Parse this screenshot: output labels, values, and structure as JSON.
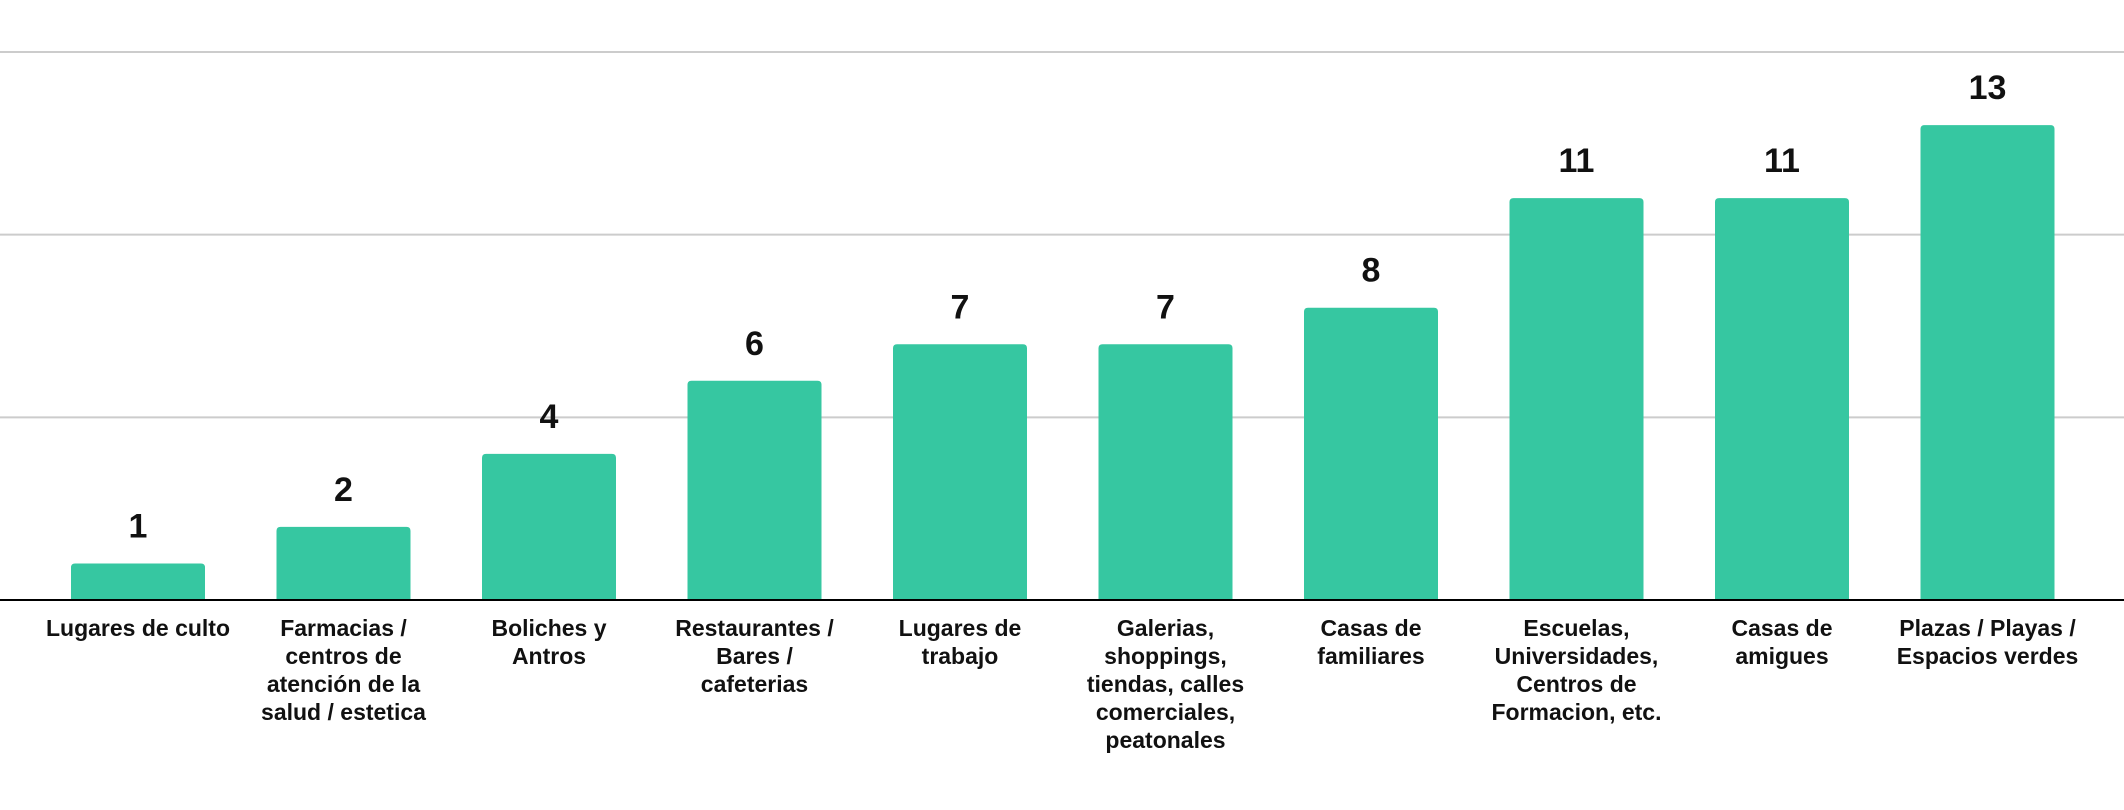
{
  "chart_data": {
    "type": "bar",
    "categories": [
      [
        "Lugares de culto"
      ],
      [
        "Farmacias /",
        "centros de",
        "atención de la",
        "salud / estetica"
      ],
      [
        "Boliches y",
        "Antros"
      ],
      [
        "Restaurantes /",
        "Bares /",
        "cafeterias"
      ],
      [
        "Lugares de",
        "trabajo"
      ],
      [
        "Galerias,",
        "shoppings,",
        "tiendas, calles",
        "comerciales,",
        "peatonales"
      ],
      [
        "Casas de",
        "familiares"
      ],
      [
        "Escuelas,",
        "Universidades,",
        "Centros de",
        "Formacion, etc."
      ],
      [
        "Casas de",
        "amigues"
      ],
      [
        "Plazas / Playas /",
        "Espacios verdes"
      ]
    ],
    "values": [
      1,
      2,
      4,
      6,
      7,
      7,
      8,
      11,
      11,
      13
    ],
    "value_labels": [
      "1",
      "2",
      "4",
      "6",
      "7",
      "7",
      "8",
      "11",
      "11",
      "13"
    ],
    "ylim": [
      0,
      15
    ],
    "gridlines": [
      5,
      10,
      15
    ],
    "grid": true,
    "bar_color": "#36c7a1",
    "title": "",
    "xlabel": "",
    "ylabel": ""
  }
}
